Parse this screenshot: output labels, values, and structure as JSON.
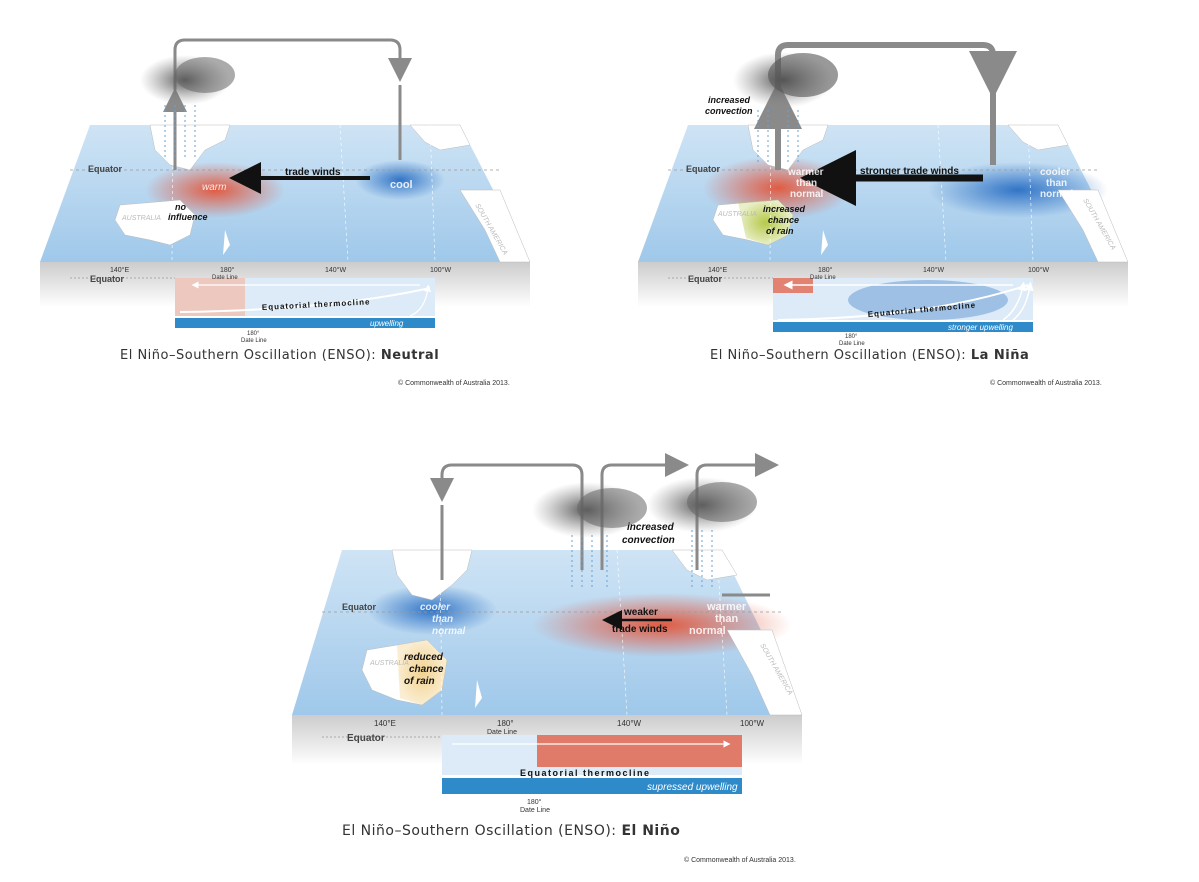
{
  "panels": {
    "neutral": {
      "caption_prefix": "El Niño–Southern Oscillation (ENSO):",
      "caption_phase": "Neutral",
      "copyright": "© Commonwealth of Australia 2013.",
      "equator_label": "Equator",
      "equator_label_section": "Equator",
      "warm_label": "warm",
      "cool_label": "cool",
      "trade_winds_label": "trade winds",
      "influence_label_1": "no",
      "influence_label_2": "influence",
      "australia_label": "AUSTRALIA",
      "south_america_label": "SOUTH AMERICA",
      "lon_140e": "140°E",
      "lon_180": "180°",
      "date_line": "Date Line",
      "lon_140w": "140°W",
      "lon_100w": "100°W",
      "thermocline_label": "Equatorial thermocline",
      "upwelling_label": "upwelling",
      "section_180": "180°",
      "section_date_line": "Date Line"
    },
    "lanina": {
      "caption_prefix": "El Niño–Southern Oscillation (ENSO):",
      "caption_phase": "La Niña",
      "copyright": "© Commonwealth of Australia 2013.",
      "equator_label": "Equator",
      "equator_label_section": "Equator",
      "convection_1": "increased",
      "convection_2": "convection",
      "warmer_1": "warmer",
      "warmer_2": "than",
      "warmer_3": "normal",
      "cooler_1": "cooler",
      "cooler_2": "than",
      "cooler_3": "normal",
      "trade_winds_label": "stronger trade winds",
      "rain_1": "increased",
      "rain_2": "chance",
      "rain_3": "of rain",
      "australia_label": "AUSTRALIA",
      "south_america_label": "SOUTH AMERICA",
      "lon_140e": "140°E",
      "lon_180": "180°",
      "date_line": "Date Line",
      "lon_140w": "140°W",
      "lon_100w": "100°W",
      "thermocline_label": "Equatorial thermocline",
      "upwelling_label": "stronger upwelling",
      "section_180": "180°",
      "section_date_line": "Date Line"
    },
    "elnino": {
      "caption_prefix": "El Niño–Southern Oscillation (ENSO):",
      "caption_phase": "El Niño",
      "copyright": "© Commonwealth of Australia 2013.",
      "equator_label": "Equator",
      "equator_label_section": "Equator",
      "convection_1": "increased",
      "convection_2": "convection",
      "cooler_1": "cooler",
      "cooler_2": "than",
      "cooler_3": "normal",
      "warmer_1": "warmer",
      "warmer_2": "than",
      "warmer_3": "normal",
      "trade_winds_1": "weaker",
      "trade_winds_2": "trade winds",
      "rain_1": "reduced",
      "rain_2": "chance",
      "rain_3": "of rain",
      "australia_label": "AUSTRALIA",
      "south_america_label": "SOUTH AMERICA",
      "lon_140e": "140°E",
      "lon_180": "180°",
      "date_line": "Date Line",
      "lon_140w": "140°W",
      "lon_100w": "100°W",
      "thermocline_label": "Equatorial thermocline",
      "upwelling_label": "supressed upwelling",
      "section_180": "180°",
      "section_date_line": "Date Line"
    }
  },
  "colors": {
    "ocean": "#a9d0ee",
    "ocean_light": "#dcebf7",
    "land": "#ffffff",
    "warm": "#e2553a",
    "cool": "#2a6fc4",
    "rain_green": "#b6c94a",
    "dry_yellow": "#f2d28e",
    "circulation_arrow": "#8a8a8a",
    "cloud": "#6b6b6b",
    "upwelling_band": "#2e8ac9"
  }
}
